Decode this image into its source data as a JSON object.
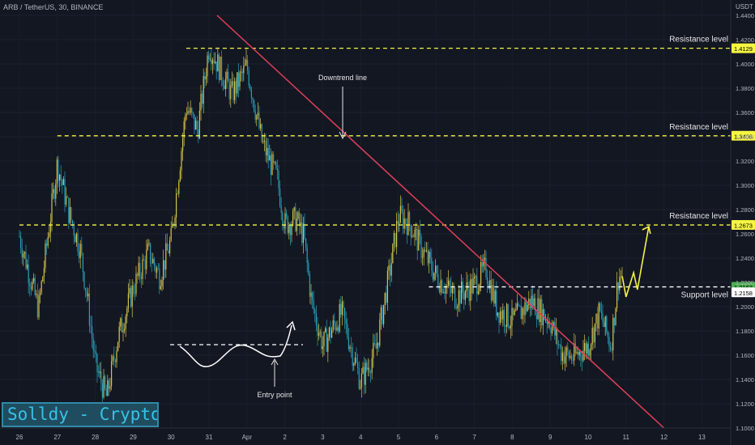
{
  "header": {
    "title": "ARB / TetherUS, 30, BINANCE",
    "currency": "USDT"
  },
  "watermark": "Solldy - Crypto for U",
  "colors": {
    "background": "#131722",
    "candle_up": "#d6c34a",
    "candle_down": "#2a9fb8",
    "resistance": "#f5f542",
    "support": "#ffffff",
    "downtrend": "#e0405a",
    "projection": "#f5f542"
  },
  "chart_data": {
    "type": "candlestick",
    "x_tick_labels": [
      "26",
      "27",
      "28",
      "29",
      "30",
      "31",
      "Apr",
      "2",
      "3",
      "4",
      "5",
      "6",
      "7",
      "8",
      "9",
      "10",
      "11",
      "12",
      "13"
    ],
    "y_tick_labels": [
      "1.4400",
      "1.4200",
      "1.4000",
      "1.3800",
      "1.3600",
      "1.3400",
      "1.3200",
      "1.3000",
      "1.2800",
      "1.2600",
      "1.2400",
      "1.2200",
      "1.2000",
      "1.1800",
      "1.1600",
      "1.1400",
      "1.1200",
      "1.1000"
    ],
    "ylim": [
      1.1,
      1.44
    ],
    "price_path": [
      [
        "26",
        1.258
      ],
      [
        "26.5",
        1.198
      ],
      [
        "27",
        1.318
      ],
      [
        "27.3",
        1.278
      ],
      [
        "27.6",
        1.248
      ],
      [
        "27.8",
        1.205
      ],
      [
        "28",
        1.152
      ],
      [
        "28.3",
        1.125
      ],
      [
        "28.6",
        1.175
      ],
      [
        "29",
        1.215
      ],
      [
        "29.4",
        1.245
      ],
      [
        "29.7",
        1.225
      ],
      [
        "30",
        1.255
      ],
      [
        "30.4",
        1.365
      ],
      [
        "30.7",
        1.345
      ],
      [
        "31",
        1.415
      ],
      [
        "31.3",
        1.395
      ],
      [
        "31.6",
        1.375
      ],
      [
        "Apr",
        1.398
      ],
      [
        "1.4",
        1.335
      ],
      [
        "1.8",
        1.305
      ],
      [
        "2",
        1.268
      ],
      [
        "2.3",
        1.272
      ],
      [
        "2.5",
        1.258
      ],
      [
        "2.7",
        1.205
      ],
      [
        "3",
        1.168
      ],
      [
        "3.5",
        1.195
      ],
      [
        "4",
        1.138
      ],
      [
        "4.4",
        1.165
      ],
      [
        "4.8",
        1.235
      ],
      [
        "5",
        1.275
      ],
      [
        "5.3",
        1.268
      ],
      [
        "5.6",
        1.248
      ],
      [
        "6",
        1.225
      ],
      [
        "6.5",
        1.208
      ],
      [
        "7",
        1.218
      ],
      [
        "7.3",
        1.232
      ],
      [
        "7.6",
        1.198
      ],
      [
        "8",
        1.188
      ],
      [
        "8.5",
        1.205
      ],
      [
        "9",
        1.188
      ],
      [
        "9.3",
        1.162
      ],
      [
        "9.6",
        1.158
      ],
      [
        "10",
        1.168
      ],
      [
        "10.3",
        1.195
      ],
      [
        "10.6",
        1.168
      ],
      [
        "10.8",
        1.225
      ],
      [
        "10.9",
        1.225
      ]
    ],
    "series": [
      {
        "name": "Resistance level",
        "value": 1.4129,
        "tag": "1.4129",
        "style": "dashed"
      },
      {
        "name": "Resistance level",
        "value": 1.3408,
        "tag": "1.3408",
        "style": "dashed"
      },
      {
        "name": "Resistance level",
        "value": 1.2673,
        "tag": "1.2673",
        "style": "dashed"
      },
      {
        "name": "Support level",
        "value": 1.2163,
        "tag": "1.2163",
        "style": "dashed"
      }
    ],
    "current_price": {
      "value": 1.2158,
      "label": "1.2158"
    },
    "downtrend_line": {
      "label": "Downtrend line",
      "from": [
        "31",
        1.44
      ],
      "to": [
        "12",
        1.1
      ]
    },
    "entry_point": {
      "label": "Entry point",
      "level": 1.158
    },
    "projection": [
      [
        "10.9",
        1.225
      ],
      [
        "11",
        1.208
      ],
      [
        "11.2",
        1.228
      ],
      [
        "11.3",
        1.214
      ],
      [
        "11.6",
        1.266
      ]
    ]
  }
}
